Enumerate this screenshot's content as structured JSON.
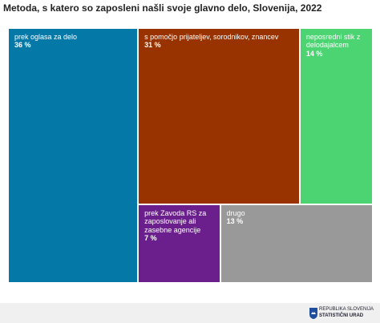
{
  "chart_data": {
    "type": "treemap",
    "title": "Metoda, s katero so zaposleni našli svoje glavno delo, Slovenija, 2022",
    "categories": [
      "prek oglasa za delo",
      "s pomočjo prijateljev, sorodnikov, znancev",
      "neposredni stik z delodajalcem",
      "prek Zavoda RS za zaposlovanje ali zasebne agencije",
      "drugo"
    ],
    "values": [
      36,
      31,
      14,
      7,
      13
    ],
    "value_labels": [
      "36 %",
      "31 %",
      "14 %",
      "7 %",
      "13 %"
    ],
    "colors": [
      "#0479a8",
      "#983300",
      "#4cd473",
      "#6b1f8c",
      "#999999"
    ]
  },
  "footer": {
    "line1": "REPUBLIKA SLOVENIJA",
    "line2": "STATISTIČNI URAD"
  }
}
